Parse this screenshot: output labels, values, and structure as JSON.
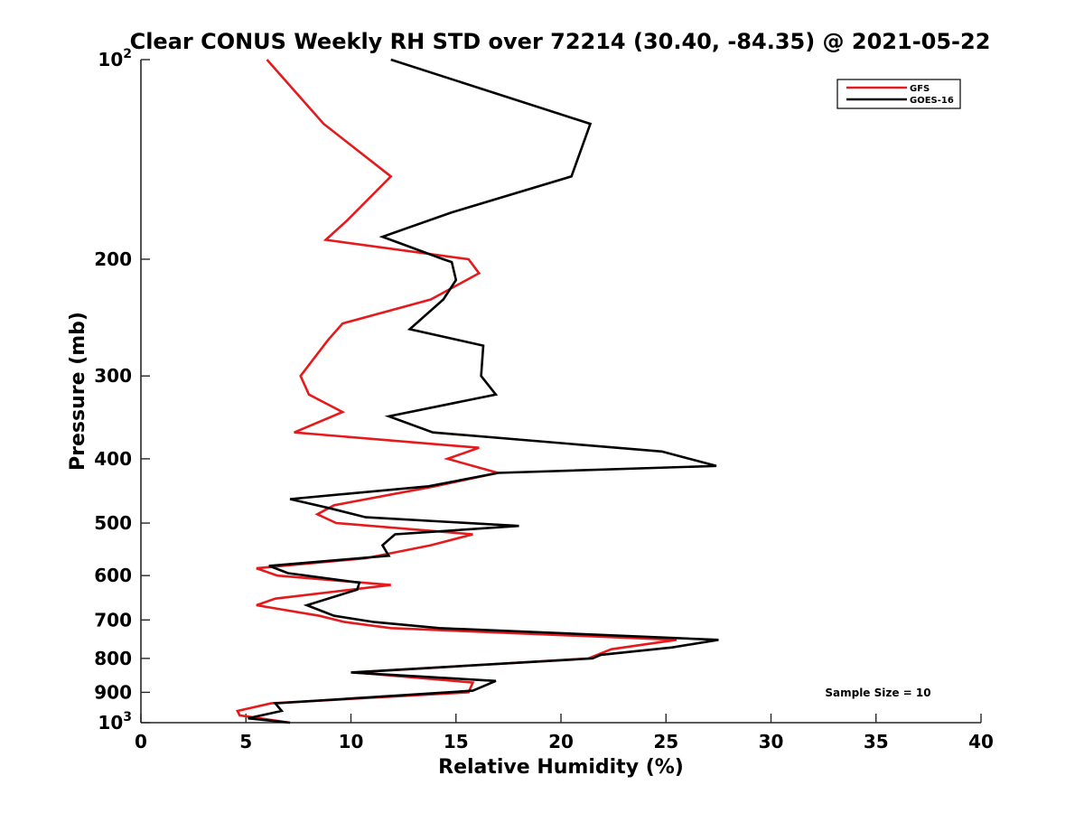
{
  "chart_data": {
    "type": "line",
    "title": "Clear CONUS Weekly RH STD over 72214 (30.40, -84.35) @ 2021-05-22",
    "xlabel": "Relative Humidity (%)",
    "ylabel": "Pressure (mb)",
    "xlim": [
      0,
      40
    ],
    "ylim": [
      100,
      1000
    ],
    "yscale": "log",
    "y_reversed": true,
    "grid": false,
    "x_ticks": [
      0,
      5,
      10,
      15,
      20,
      25,
      30,
      35,
      40
    ],
    "x_tick_labels": [
      "0",
      "5",
      "10",
      "15",
      "20",
      "25",
      "30",
      "35",
      "40"
    ],
    "y_ticks": [
      100,
      200,
      300,
      400,
      500,
      600,
      700,
      800,
      900,
      1000
    ],
    "y_tick_labels": [
      {
        "base": "10",
        "exp": "2"
      },
      {
        "base": "200",
        "exp": ""
      },
      {
        "base": "300",
        "exp": ""
      },
      {
        "base": "400",
        "exp": ""
      },
      {
        "base": "500",
        "exp": ""
      },
      {
        "base": "600",
        "exp": ""
      },
      {
        "base": "700",
        "exp": ""
      },
      {
        "base": "800",
        "exp": ""
      },
      {
        "base": "900",
        "exp": ""
      },
      {
        "base": "10",
        "exp": "3"
      }
    ],
    "legend_position": "top-right",
    "annotation": "Sample Size = 10",
    "series": [
      {
        "name": "GFS",
        "color": "#e41a1c",
        "points": [
          [
            6.0,
            100
          ],
          [
            8.7,
            125
          ],
          [
            11.9,
            150
          ],
          [
            9.8,
            175
          ],
          [
            8.8,
            187
          ],
          [
            15.6,
            200
          ],
          [
            16.1,
            210
          ],
          [
            13.8,
            230
          ],
          [
            9.6,
            250
          ],
          [
            8.9,
            265
          ],
          [
            7.6,
            300
          ],
          [
            8.0,
            320
          ],
          [
            9.6,
            340
          ],
          [
            7.3,
            365
          ],
          [
            16.1,
            385
          ],
          [
            14.6,
            400
          ],
          [
            17.0,
            420
          ],
          [
            14.0,
            440
          ],
          [
            9.2,
            470
          ],
          [
            8.4,
            485
          ],
          [
            9.3,
            500
          ],
          [
            15.8,
            520
          ],
          [
            13.8,
            540
          ],
          [
            10.7,
            565
          ],
          [
            5.5,
            585
          ],
          [
            6.5,
            600
          ],
          [
            11.9,
            620
          ],
          [
            6.4,
            650
          ],
          [
            5.5,
            665
          ],
          [
            8.5,
            690
          ],
          [
            9.7,
            705
          ],
          [
            11.9,
            720
          ],
          [
            25.5,
            750
          ],
          [
            22.4,
            775
          ],
          [
            21.3,
            800
          ],
          [
            10.2,
            840
          ],
          [
            15.8,
            870
          ],
          [
            15.6,
            900
          ],
          [
            6.2,
            935
          ],
          [
            4.6,
            960
          ],
          [
            4.7,
            975
          ],
          [
            7.1,
            1000
          ]
        ]
      },
      {
        "name": "GOES-16",
        "color": "#000000",
        "points": [
          [
            11.9,
            100
          ],
          [
            21.4,
            125
          ],
          [
            20.5,
            150
          ],
          [
            14.8,
            170
          ],
          [
            11.5,
            185
          ],
          [
            14.4,
            200
          ],
          [
            14.8,
            202
          ],
          [
            15.0,
            215
          ],
          [
            14.4,
            230
          ],
          [
            12.8,
            255
          ],
          [
            16.3,
            270
          ],
          [
            16.2,
            300
          ],
          [
            16.9,
            320
          ],
          [
            11.8,
            345
          ],
          [
            13.9,
            365
          ],
          [
            24.8,
            390
          ],
          [
            27.4,
            410
          ],
          [
            17.0,
            420
          ],
          [
            13.7,
            440
          ],
          [
            7.1,
            460
          ],
          [
            9.0,
            475
          ],
          [
            10.7,
            490
          ],
          [
            18.0,
            505
          ],
          [
            12.1,
            520
          ],
          [
            11.5,
            540
          ],
          [
            11.8,
            560
          ],
          [
            6.1,
            580
          ],
          [
            7.0,
            595
          ],
          [
            10.4,
            615
          ],
          [
            10.3,
            630
          ],
          [
            7.9,
            665
          ],
          [
            9.2,
            690
          ],
          [
            11.1,
            705
          ],
          [
            14.2,
            720
          ],
          [
            27.5,
            750
          ],
          [
            25.3,
            770
          ],
          [
            21.9,
            790
          ],
          [
            21.5,
            800
          ],
          [
            10.0,
            840
          ],
          [
            16.9,
            865
          ],
          [
            15.8,
            895
          ],
          [
            6.4,
            935
          ],
          [
            6.7,
            960
          ],
          [
            5.1,
            985
          ],
          [
            7.1,
            1000
          ]
        ]
      }
    ]
  }
}
